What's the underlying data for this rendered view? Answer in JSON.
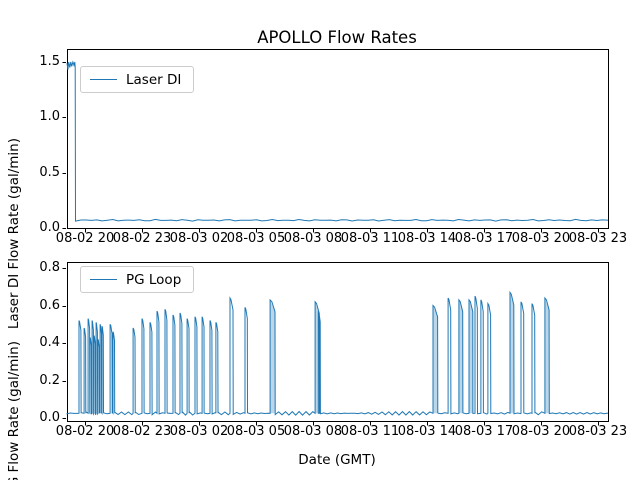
{
  "figure": {
    "title": "APOLLO Flow Rates",
    "xlabel": "Date (GMT)"
  },
  "x_axis": {
    "tick_labels": [
      "08-02 20",
      "08-02 23",
      "08-03 02",
      "08-03 05",
      "08-03 08",
      "08-03 11",
      "08-03 14",
      "08-03 17",
      "08-03 20",
      "08-03 23"
    ],
    "tick_hours": [
      0,
      3,
      6,
      9,
      12,
      15,
      18,
      21,
      24,
      27
    ]
  },
  "top_plot": {
    "ylabel": "Laser DI Flow Rate (gal/min)",
    "legend_label": "Laser DI",
    "y_tick_labels": [
      "0.0",
      "0.5",
      "1.0",
      "1.5"
    ],
    "y_tick_values": [
      0,
      0.5,
      1.0,
      1.5
    ]
  },
  "bottom_plot": {
    "ylabel": "PG Flow Rate (gal/min)",
    "legend_label": "PG Loop",
    "y_tick_labels": [
      "0.0",
      "0.2",
      "0.4",
      "0.6",
      "0.8"
    ],
    "y_tick_values": [
      0,
      0.2,
      0.4,
      0.6,
      0.8
    ]
  },
  "colors": {
    "line": "#1f77b4",
    "spine": "#000000",
    "legend_border": "#cccccc",
    "wide_spike_fill": "rgba(31,119,180,0.3)"
  },
  "chart_data": [
    {
      "type": "line",
      "series_name": "Laser DI",
      "x_unit": "hours after 08-02 20:00 GMT",
      "xlim": [
        -0.95,
        27.53
      ],
      "ylim": [
        0,
        1.617
      ],
      "y_ticks": [
        0,
        0.5,
        1.0,
        1.5
      ],
      "baseline": 0.07,
      "baseline_noise": 0.005,
      "points": [
        [
          -0.95,
          1.49
        ],
        [
          -0.9,
          1.43
        ],
        [
          -0.86,
          1.5
        ],
        [
          -0.8,
          1.45
        ],
        [
          -0.75,
          1.5
        ],
        [
          -0.7,
          1.46
        ],
        [
          -0.64,
          1.5
        ],
        [
          -0.58,
          1.47
        ],
        [
          -0.54,
          1.5
        ],
        [
          -0.52,
          1.45
        ],
        [
          -0.5,
          0.07
        ]
      ],
      "flat_until": 27.53
    },
    {
      "type": "line",
      "series_name": "PG Loop",
      "x_unit": "hours after 08-02 20:00 GMT",
      "xlim": [
        -0.95,
        27.53
      ],
      "ylim": [
        -0.016,
        0.832
      ],
      "y_ticks": [
        0,
        0.2,
        0.4,
        0.6,
        0.8
      ],
      "baseline": 0.025,
      "baseline_noise": 0.006,
      "spikes_format": "[hour, peak_gal_per_min, width_hours]",
      "spikes": [
        [
          -0.32,
          0.52,
          0.1
        ],
        [
          -0.05,
          0.48,
          0.08
        ],
        [
          0.16,
          0.53,
          0.08
        ],
        [
          0.26,
          0.43,
          0.07
        ],
        [
          0.37,
          0.52,
          0.07
        ],
        [
          0.47,
          0.44,
          0.07
        ],
        [
          0.58,
          0.51,
          0.07
        ],
        [
          0.68,
          0.42,
          0.07
        ],
        [
          0.79,
          0.5,
          0.07
        ],
        [
          0.89,
          0.49,
          0.07
        ],
        [
          1.32,
          0.5,
          0.1
        ],
        [
          1.47,
          0.46,
          0.08
        ],
        [
          2.53,
          0.48,
          0.1
        ],
        [
          3.0,
          0.53,
          0.1
        ],
        [
          3.42,
          0.51,
          0.1
        ],
        [
          3.79,
          0.57,
          0.1
        ],
        [
          4.21,
          0.58,
          0.1
        ],
        [
          4.63,
          0.55,
          0.1
        ],
        [
          5.0,
          0.56,
          0.1
        ],
        [
          5.37,
          0.53,
          0.1
        ],
        [
          5.79,
          0.54,
          0.1
        ],
        [
          6.16,
          0.54,
          0.1
        ],
        [
          6.58,
          0.52,
          0.1
        ],
        [
          6.89,
          0.51,
          0.1
        ],
        [
          7.63,
          0.64,
          0.16
        ],
        [
          8.42,
          0.59,
          0.12
        ],
        [
          9.74,
          0.63,
          0.26
        ],
        [
          12.11,
          0.62,
          0.22
        ],
        [
          12.28,
          0.57,
          0.1
        ],
        [
          18.32,
          0.6,
          0.24
        ],
        [
          19.11,
          0.64,
          0.14
        ],
        [
          19.68,
          0.63,
          0.2
        ],
        [
          20.21,
          0.63,
          0.2
        ],
        [
          20.53,
          0.65,
          0.12
        ],
        [
          20.84,
          0.63,
          0.12
        ],
        [
          21.21,
          0.61,
          0.14
        ],
        [
          22.37,
          0.67,
          0.2
        ],
        [
          22.95,
          0.62,
          0.14
        ],
        [
          23.53,
          0.61,
          0.14
        ],
        [
          24.21,
          0.64,
          0.22
        ]
      ]
    }
  ]
}
